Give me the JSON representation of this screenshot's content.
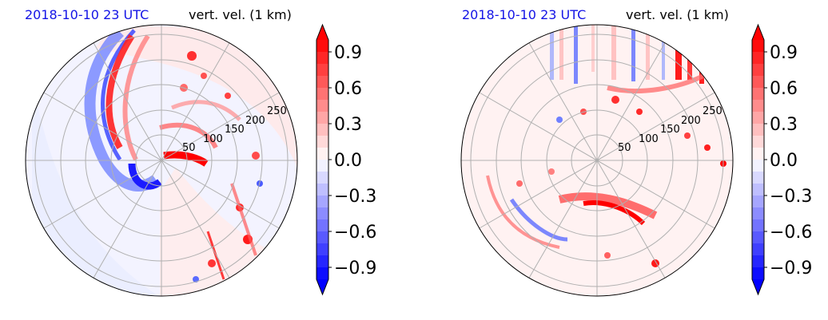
{
  "colors": {
    "date_title": "#1414e6",
    "var_title": "#000000",
    "cmap_neg_max": "#0000ff",
    "cmap_pos_max": "#ff0000",
    "grid": "#b0b0b0"
  },
  "panels": [
    {
      "date_title": "2018-10-10 23 UTC",
      "var_title": "vert. vel. (1 km)",
      "radial_ticks": [
        "50",
        "100",
        "150",
        "200",
        "250"
      ]
    },
    {
      "date_title": "2018-10-10 23 UTC",
      "var_title": "vert. vel. (1 km)",
      "radial_ticks": [
        "50",
        "100",
        "150",
        "200",
        "250"
      ]
    }
  ],
  "colorbar": {
    "tick_labels": [
      "0.9",
      "0.6",
      "0.3",
      "0.0",
      "−0.3",
      "−0.6",
      "−0.9"
    ],
    "min": -1.0,
    "max": 1.0,
    "levels": 20,
    "extend": "both"
  },
  "chart_data": [
    {
      "type": "heatmap",
      "projection": "polar",
      "title": "2018-10-10 23 UTC",
      "subtitle": "vert. vel. (1 km)",
      "radial_ticks": [
        50,
        100,
        150,
        200,
        250
      ],
      "color_range": [
        -1.0,
        1.0
      ],
      "colorbar_ticks": [
        0.9,
        0.6,
        0.3,
        0.0,
        -0.3,
        -0.6,
        -0.9
      ],
      "grid": true
    },
    {
      "type": "heatmap",
      "projection": "polar",
      "title": "2018-10-10 23 UTC",
      "subtitle": "vert. vel. (1 km)",
      "radial_ticks": [
        50,
        100,
        150,
        200,
        250
      ],
      "color_range": [
        -1.0,
        1.0
      ],
      "colorbar_ticks": [
        0.9,
        0.6,
        0.3,
        0.0,
        -0.3,
        -0.6,
        -0.9
      ],
      "grid": true
    }
  ]
}
